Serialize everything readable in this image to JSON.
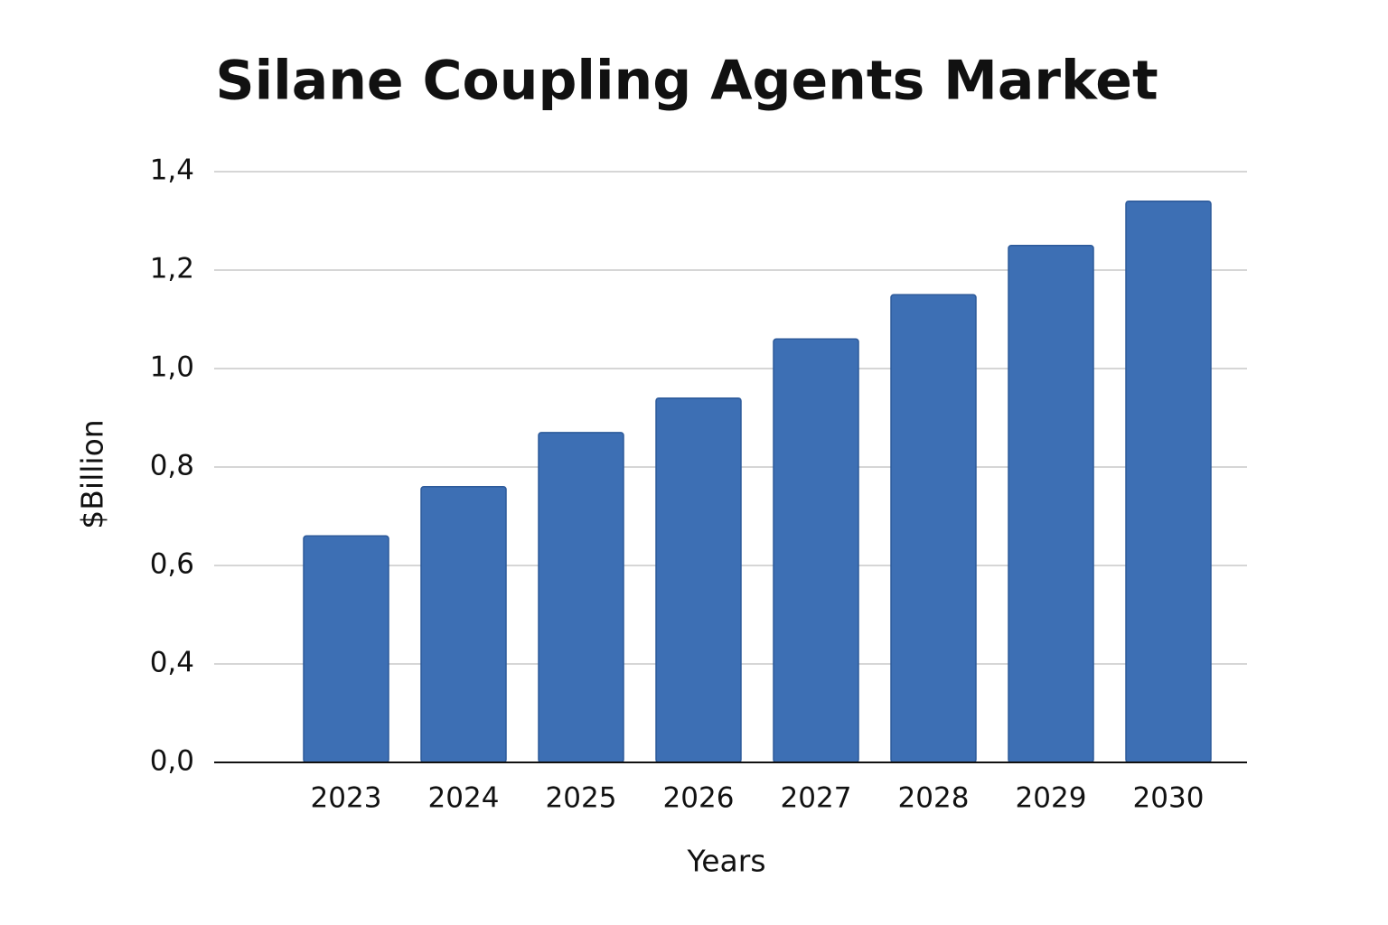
{
  "chart_data": {
    "type": "bar",
    "title": "Silane Coupling Agents Market",
    "x_label": "Years",
    "y_label": "$Billion",
    "categories": [
      "2023",
      "2024",
      "2025",
      "2026",
      "2027",
      "2028",
      "2029",
      "2030"
    ],
    "values": [
      0.66,
      0.76,
      0.87,
      0.94,
      1.06,
      1.15,
      1.25,
      1.34
    ],
    "color": "#3d6fb4",
    "ylim": [
      0,
      1.4
    ],
    "yticks": [
      {
        "value": 0,
        "label": "0,0"
      },
      {
        "value": 0.4,
        "label": "0,4"
      },
      {
        "value": 0.6,
        "label": "0,6"
      },
      {
        "value": 0.8,
        "label": "0,8"
      },
      {
        "value": 1.0,
        "label": "1,0"
      },
      {
        "value": 1.2,
        "label": "1,2"
      },
      {
        "value": 1.4,
        "label": "1,4"
      }
    ],
    "grid": true
  }
}
